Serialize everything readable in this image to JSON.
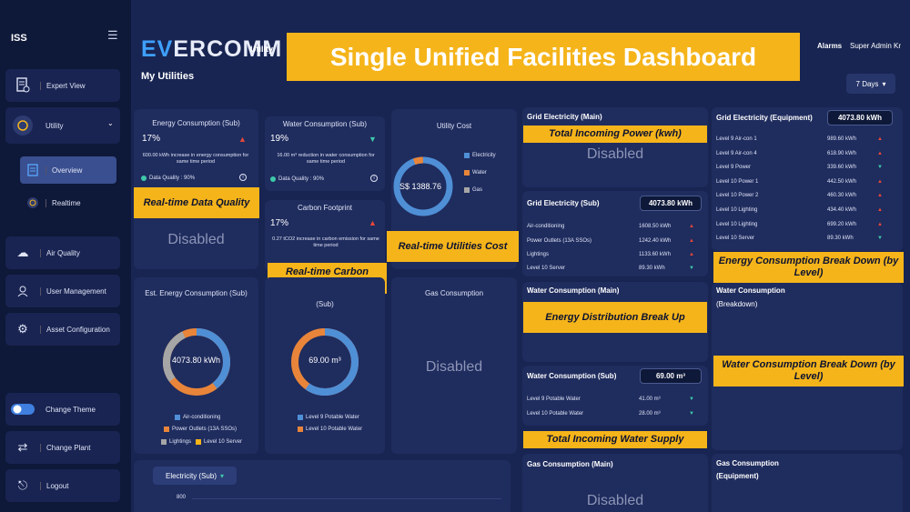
{
  "sidebar": {
    "brand": "ISS",
    "menu_icon": "hamburger-icon",
    "items": [
      {
        "label": "Expert View"
      },
      {
        "label": "Utility"
      },
      {
        "label": "Overview"
      },
      {
        "label": "Realtime"
      },
      {
        "label": "Air Quality"
      },
      {
        "label": "User Management"
      },
      {
        "label": "Asset Configuration"
      },
      {
        "label": "Change Theme"
      },
      {
        "label": "Change Plant"
      },
      {
        "label": "Logout"
      }
    ]
  },
  "header": {
    "logo_prefix": "EV",
    "logo_suffix": "ERCOMM",
    "section": "Utility",
    "title": "My Utilities",
    "banner": "Single Unified Facilities Dashboard",
    "alarms": "Alarms",
    "user": "Super Admin Kr",
    "range": "7 Days"
  },
  "energy_sub": {
    "title": "Energy Consumption (Sub)",
    "pct": "17%",
    "note": "600.00 kWh increase in energy consumption for same time period",
    "dq": "Data Quality : 90%",
    "label": "Real-time Data Quality",
    "disabled": "Disabled"
  },
  "water_sub": {
    "title": "Water Consumption (Sub)",
    "pct": "19%",
    "note": "16.00 m³ reduction in water consumption for same time period",
    "dq": "Data Quality : 90%"
  },
  "carbon": {
    "title": "Carbon Footprint",
    "pct": "17%",
    "note": "0.27 tCO2 increase in carbon emission for same time period",
    "label": "Real-time Carbon Footprint"
  },
  "utility_cost": {
    "title": "Utility Cost",
    "value": "S$ 1388.76",
    "legend": [
      "Electricity",
      "Water",
      "Gas"
    ],
    "label": "Real-time Utilities Cost"
  },
  "est_energy": {
    "title": "Est. Energy Consumption (Sub)",
    "value": "4073.80 kWh",
    "legend": [
      "Air-conditioning",
      "Power Outlets (13A SSOs)",
      "Lightings",
      "Level 10 Server"
    ]
  },
  "est_water": {
    "title": "(Sub)",
    "value": "69.00 m³",
    "legend": [
      "Level 9 Potable Water",
      "Level 10 Potable Water"
    ]
  },
  "gas": {
    "title": "Gas Consumption",
    "disabled": "Disabled"
  },
  "grid_main": {
    "title": "Grid Electricity (Main)",
    "label": "Total Incoming Power  (kwh)",
    "disabled": "Disabled"
  },
  "grid_sub": {
    "title": "Grid Electricity (Sub)",
    "total": "4073.80 kWh",
    "rows": [
      {
        "name": "Air-conditioning",
        "value": "1608.50 kWh",
        "trend": "up"
      },
      {
        "name": "Power Outlets (13A SSOs)",
        "value": "1242.40 kWh",
        "trend": "up"
      },
      {
        "name": "Lightings",
        "value": "1133.60 kWh",
        "trend": "up"
      },
      {
        "name": "Level 10 Server",
        "value": "89.30 kWh",
        "trend": "down"
      }
    ]
  },
  "water_main": {
    "title": "Water Consumption (Main)",
    "label": "Energy Distribution Break Up"
  },
  "water_sub_list": {
    "title": "Water Consumption (Sub)",
    "total": "69.00 m³",
    "rows": [
      {
        "name": "Level 9 Potable Water",
        "value": "41.00 m³",
        "trend": "down"
      },
      {
        "name": "Level 10 Potable Water",
        "value": "28.00 m³",
        "trend": "down"
      }
    ],
    "label": "Total Incoming Water Supply"
  },
  "gas_main": {
    "title": "Gas Consumption (Main)",
    "disabled": "Disabled"
  },
  "grid_equip": {
    "title": "Grid Electricity (Equipment)",
    "total": "4073.80 kWh",
    "rows": [
      {
        "name": "Level 9 Air-con 1",
        "value": "989.60 kWh",
        "trend": "up"
      },
      {
        "name": "Level 9 Air-con 4",
        "value": "618.90 kWh",
        "trend": "up"
      },
      {
        "name": "Level 9 Power",
        "value": "339.60 kWh",
        "trend": "down"
      },
      {
        "name": "Level 10 Power 1",
        "value": "442.50 kWh",
        "trend": "up"
      },
      {
        "name": "Level 10 Power 2",
        "value": "460.30 kWh",
        "trend": "up"
      },
      {
        "name": "Level 10 Lighting",
        "value": "434.40 kWh",
        "trend": "up"
      },
      {
        "name": "Level 10 Lighting",
        "value": "699.20 kWh",
        "trend": "up"
      },
      {
        "name": "Level 10 Server",
        "value": "89.30 kWh",
        "trend": "down"
      }
    ],
    "label": "Energy Consumption Break Down (by Level)"
  },
  "water_break": {
    "title": "Water Consumption",
    "subtitle": "(Breakdown)",
    "label": "Water Consumption Break Down (by Level)"
  },
  "gas_equip": {
    "title": "Gas Consumption",
    "subtitle": "(Equipment)"
  },
  "electricity_chart": {
    "selector": "Electricity (Sub)",
    "tick": "800"
  },
  "colors": {
    "blue": "#4f8fd6",
    "orange": "#e8853a",
    "grey": "#a6a6a6",
    "yellow": "#f5b41a"
  }
}
